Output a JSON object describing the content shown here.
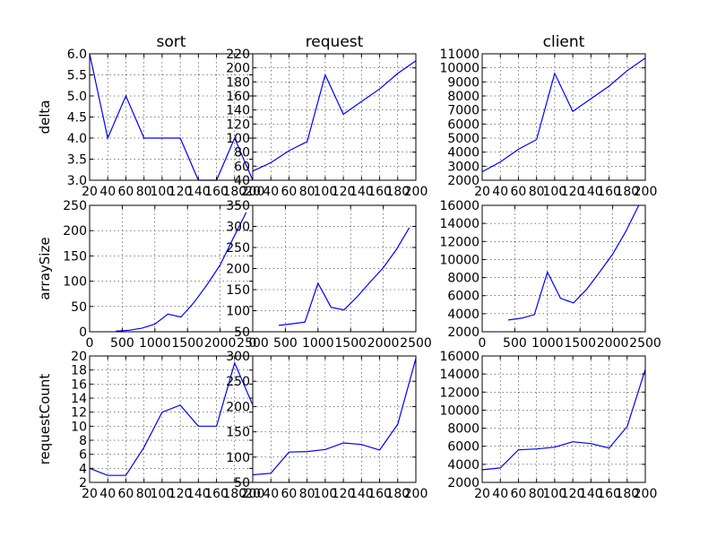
{
  "chart_data": [
    {
      "type": "line",
      "title": "sort",
      "ylabel": "delta",
      "xlim": [
        20,
        200
      ],
      "ylim": [
        3,
        6
      ],
      "xticks": [
        20,
        40,
        60,
        80,
        100,
        120,
        140,
        160,
        180,
        200
      ],
      "xtick_labels": [
        "20",
        "40",
        "60",
        "80",
        "100",
        "120",
        "140",
        "160",
        "180",
        "200"
      ],
      "yticks": [
        3,
        3.5,
        4,
        4.5,
        5,
        5.5,
        6
      ],
      "ytick_labels": [
        "3.0",
        "3.5",
        "4.0",
        "4.5",
        "5.0",
        "5.5",
        "6.0"
      ],
      "grid": true,
      "x": [
        20,
        40,
        60,
        80,
        100,
        120,
        140,
        160,
        180,
        200
      ],
      "y": [
        6,
        4,
        5,
        4,
        4,
        4,
        3,
        3,
        4,
        3
      ]
    },
    {
      "type": "line",
      "title": "request",
      "ylabel": "",
      "xlim": [
        20,
        200
      ],
      "ylim": [
        40,
        220
      ],
      "xticks": [
        20,
        40,
        60,
        80,
        100,
        120,
        140,
        160,
        180,
        200
      ],
      "xtick_labels": [
        "20",
        "40",
        "60",
        "80",
        "100",
        "120",
        "140",
        "160",
        "180",
        "200"
      ],
      "yticks": [
        40,
        60,
        80,
        100,
        120,
        140,
        160,
        180,
        200,
        220
      ],
      "ytick_labels": [
        "40",
        "60",
        "80",
        "100",
        "120",
        "140",
        "160",
        "180",
        "200",
        "220"
      ],
      "grid": true,
      "x": [
        20,
        40,
        60,
        80,
        100,
        120,
        140,
        160,
        180,
        200
      ],
      "y": [
        53,
        65,
        82,
        95,
        190,
        134,
        152,
        170,
        192,
        210
      ]
    },
    {
      "type": "line",
      "title": "client",
      "ylabel": "",
      "xlim": [
        20,
        200
      ],
      "ylim": [
        2000,
        11000
      ],
      "xticks": [
        20,
        40,
        60,
        80,
        100,
        120,
        140,
        160,
        180,
        200
      ],
      "xtick_labels": [
        "20",
        "40",
        "60",
        "80",
        "100",
        "120",
        "140",
        "160",
        "180",
        "200"
      ],
      "yticks": [
        2000,
        3000,
        4000,
        5000,
        6000,
        7000,
        8000,
        9000,
        10000,
        11000
      ],
      "ytick_labels": [
        "2000",
        "3000",
        "4000",
        "5000",
        "6000",
        "7000",
        "8000",
        "9000",
        "10000",
        "11000"
      ],
      "grid": true,
      "x": [
        20,
        40,
        60,
        80,
        100,
        120,
        140,
        160,
        180,
        200
      ],
      "y": [
        2600,
        3300,
        4200,
        4900,
        9600,
        6900,
        7800,
        8700,
        9800,
        10700
      ]
    },
    {
      "type": "line",
      "title": "",
      "ylabel": "arraySize",
      "xlim": [
        0,
        2500
      ],
      "ylim": [
        0,
        250
      ],
      "xticks": [
        0,
        500,
        1000,
        1500,
        2000,
        2500
      ],
      "xtick_labels": [
        "0",
        "500",
        "1000",
        "1500",
        "2000",
        "2500"
      ],
      "yticks": [
        0,
        50,
        100,
        150,
        200,
        250
      ],
      "ytick_labels": [
        "0",
        "50",
        "100",
        "150",
        "200",
        "250"
      ],
      "grid": true,
      "x": [
        400,
        600,
        800,
        1000,
        1200,
        1400,
        1600,
        1800,
        2000,
        2200,
        2400
      ],
      "y": [
        1,
        3,
        7,
        15,
        35,
        29,
        58,
        93,
        132,
        185,
        236
      ]
    },
    {
      "type": "line",
      "title": "",
      "ylabel": "",
      "xlim": [
        0,
        2500
      ],
      "ylim": [
        50,
        350
      ],
      "xticks": [
        0,
        500,
        1000,
        1500,
        2000,
        2500
      ],
      "xtick_labels": [
        "0",
        "500",
        "1000",
        "1500",
        "2000",
        "2500"
      ],
      "yticks": [
        50,
        100,
        150,
        200,
        250,
        300,
        350
      ],
      "ytick_labels": [
        "50",
        "100",
        "150",
        "200",
        "250",
        "300",
        "350"
      ],
      "grid": true,
      "x": [
        400,
        600,
        800,
        1000,
        1200,
        1400,
        1600,
        1800,
        2000,
        2200,
        2400
      ],
      "y": [
        65,
        69,
        73,
        165,
        108,
        102,
        133,
        168,
        202,
        245,
        297
      ]
    },
    {
      "type": "line",
      "title": "",
      "ylabel": "",
      "xlim": [
        0,
        2500
      ],
      "ylim": [
        2000,
        16000
      ],
      "xticks": [
        0,
        500,
        1000,
        1500,
        2000,
        2500
      ],
      "xtick_labels": [
        "0",
        "500",
        "1000",
        "1500",
        "2000",
        "2500"
      ],
      "yticks": [
        2000,
        4000,
        6000,
        8000,
        10000,
        12000,
        14000,
        16000
      ],
      "ytick_labels": [
        "2000",
        "4000",
        "6000",
        "8000",
        "10000",
        "12000",
        "14000",
        "16000"
      ],
      "grid": true,
      "x": [
        400,
        600,
        800,
        1000,
        1200,
        1400,
        1600,
        1800,
        2000,
        2200,
        2400
      ],
      "y": [
        3300,
        3500,
        3900,
        8600,
        5700,
        5200,
        6700,
        8600,
        10600,
        13100,
        16000
      ]
    },
    {
      "type": "line",
      "title": "",
      "ylabel": "requestCount",
      "xlim": [
        20,
        200
      ],
      "ylim": [
        2,
        20
      ],
      "xticks": [
        20,
        40,
        60,
        80,
        100,
        120,
        140,
        160,
        180,
        200
      ],
      "xtick_labels": [
        "20",
        "40",
        "60",
        "80",
        "100",
        "120",
        "140",
        "160",
        "180",
        "200"
      ],
      "yticks": [
        2,
        4,
        6,
        8,
        10,
        12,
        14,
        16,
        18,
        20
      ],
      "ytick_labels": [
        "2",
        "4",
        "6",
        "8",
        "10",
        "12",
        "14",
        "16",
        "18",
        "20"
      ],
      "grid": true,
      "x": [
        20,
        40,
        60,
        80,
        100,
        120,
        140,
        160,
        180,
        200
      ],
      "y": [
        4,
        3,
        3,
        7,
        12,
        13,
        10,
        10,
        19,
        13
      ]
    },
    {
      "type": "line",
      "title": "",
      "ylabel": "",
      "xlim": [
        20,
        200
      ],
      "ylim": [
        50,
        300
      ],
      "xticks": [
        20,
        40,
        60,
        80,
        100,
        120,
        140,
        160,
        180,
        200
      ],
      "xtick_labels": [
        "20",
        "40",
        "60",
        "80",
        "100",
        "120",
        "140",
        "160",
        "180",
        "200"
      ],
      "yticks": [
        50,
        100,
        150,
        200,
        250,
        300
      ],
      "ytick_labels": [
        "50",
        "100",
        "150",
        "200",
        "250",
        "300"
      ],
      "grid": true,
      "x": [
        20,
        40,
        60,
        80,
        100,
        120,
        140,
        160,
        180,
        200
      ],
      "y": [
        65,
        68,
        110,
        111,
        115,
        128,
        125,
        114,
        165,
        295
      ]
    },
    {
      "type": "line",
      "title": "",
      "ylabel": "",
      "xlim": [
        20,
        200
      ],
      "ylim": [
        2000,
        16000
      ],
      "xticks": [
        20,
        40,
        60,
        80,
        100,
        120,
        140,
        160,
        180,
        200
      ],
      "xtick_labels": [
        "20",
        "40",
        "60",
        "80",
        "100",
        "120",
        "140",
        "160",
        "180",
        "200"
      ],
      "yticks": [
        2000,
        4000,
        6000,
        8000,
        10000,
        12000,
        14000,
        16000
      ],
      "ytick_labels": [
        "2000",
        "4000",
        "6000",
        "8000",
        "10000",
        "12000",
        "14000",
        "16000"
      ],
      "grid": true,
      "x": [
        20,
        40,
        60,
        80,
        100,
        120,
        140,
        160,
        180,
        200
      ],
      "y": [
        3400,
        3600,
        5600,
        5700,
        5900,
        6500,
        6300,
        5800,
        8200,
        14500
      ]
    }
  ],
  "colors": {
    "line": "#0000ff",
    "axis": "#000000",
    "background": "#ffffff"
  }
}
